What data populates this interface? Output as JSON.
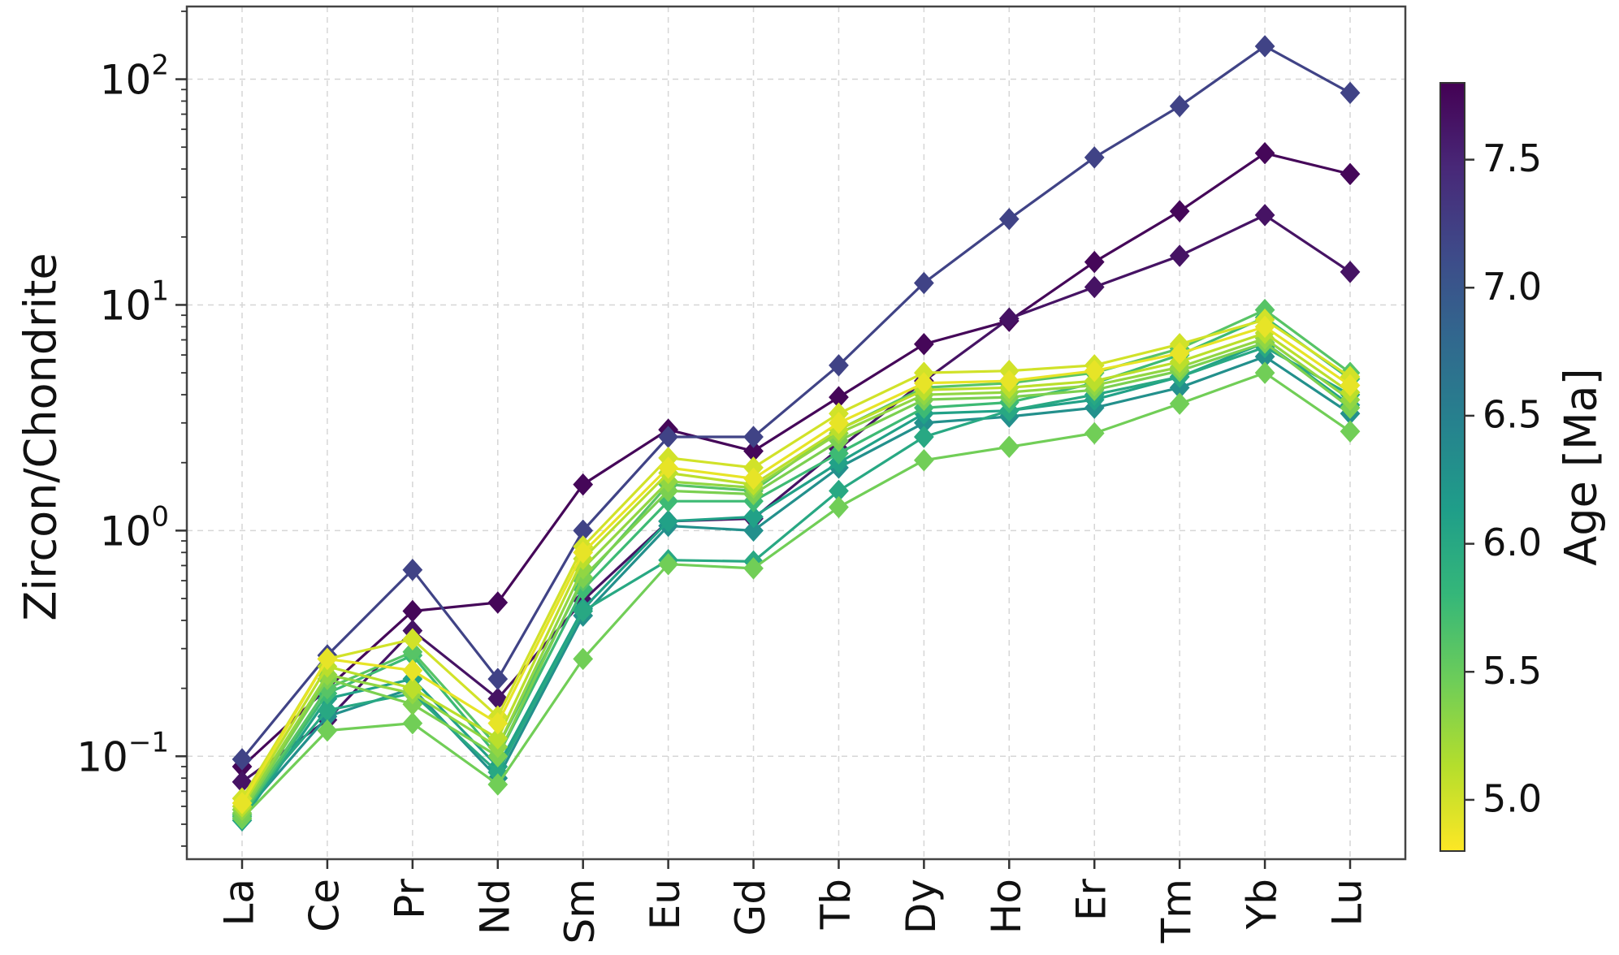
{
  "chart_data": {
    "type": "line",
    "yscale": "log",
    "ylim": [
      0.035,
      210
    ],
    "ylabel": "Zircon/Chondrite",
    "xlabel": "",
    "title": "",
    "grid": true,
    "categories": [
      "La",
      "Ce",
      "Pr",
      "Nd",
      "Sm",
      "Eu",
      "Gd",
      "Tb",
      "Dy",
      "Ho",
      "Er",
      "Tm",
      "Yb",
      "Lu"
    ],
    "ytick_labels": [
      {
        "value": 0.1,
        "base": "10",
        "exp": "−1"
      },
      {
        "value": 1,
        "base": "10",
        "exp": "0"
      },
      {
        "value": 10,
        "base": "10",
        "exp": "1"
      },
      {
        "value": 100,
        "base": "10",
        "exp": "2"
      }
    ],
    "colorbar": {
      "label": "Age [Ma]",
      "range": [
        4.8,
        7.8
      ],
      "ticks": [
        "5.0",
        "5.5",
        "6.0",
        "6.5",
        "7.0",
        "7.5"
      ],
      "colormap": "viridis_r"
    },
    "marker": "diamond",
    "series": [
      {
        "age": 7.2,
        "values": [
          0.097,
          0.28,
          0.67,
          0.22,
          1.0,
          2.6,
          2.6,
          5.4,
          12.5,
          24,
          45,
          76,
          140,
          87
        ]
      },
      {
        "age": 7.75,
        "values": [
          0.09,
          0.2,
          0.44,
          0.48,
          1.6,
          2.8,
          2.25,
          3.9,
          6.7,
          8.5,
          15.5,
          26,
          47,
          38
        ]
      },
      {
        "age": 7.65,
        "values": [
          0.077,
          0.145,
          0.36,
          0.18,
          0.49,
          1.1,
          1.13,
          2.3,
          4.6,
          8.7,
          12,
          16.5,
          25,
          14
        ]
      },
      {
        "age": 5.0,
        "values": [
          0.065,
          0.27,
          0.33,
          0.15,
          0.85,
          2.1,
          1.9,
          3.3,
          5.0,
          5.1,
          5.4,
          6.7,
          8.6,
          4.8
        ]
      },
      {
        "age": 4.9,
        "values": [
          0.062,
          0.27,
          0.24,
          0.14,
          0.8,
          1.9,
          1.7,
          3.0,
          4.5,
          4.6,
          5.1,
          6.1,
          8.0,
          4.4
        ]
      },
      {
        "age": 5.1,
        "values": [
          0.06,
          0.25,
          0.2,
          0.12,
          0.75,
          1.8,
          1.6,
          2.8,
          4.2,
          4.3,
          4.6,
          5.6,
          7.5,
          4.1
        ]
      },
      {
        "age": 5.3,
        "values": [
          0.058,
          0.23,
          0.19,
          0.11,
          0.68,
          1.65,
          1.55,
          2.7,
          4.0,
          4.1,
          4.4,
          5.3,
          7.1,
          3.8
        ]
      },
      {
        "age": 5.4,
        "values": [
          0.056,
          0.22,
          0.17,
          0.1,
          0.62,
          1.5,
          1.45,
          2.5,
          3.8,
          3.9,
          4.2,
          5.1,
          6.8,
          3.5
        ]
      },
      {
        "age": 5.6,
        "values": [
          0.055,
          0.2,
          0.29,
          0.11,
          0.6,
          1.6,
          1.5,
          2.8,
          4.3,
          4.5,
          5.0,
          6.4,
          9.5,
          5.0
        ]
      },
      {
        "age": 5.75,
        "values": [
          0.054,
          0.19,
          0.28,
          0.1,
          0.55,
          1.35,
          1.35,
          2.2,
          3.5,
          3.7,
          4.5,
          6.0,
          8.8,
          4.7
        ]
      },
      {
        "age": 6.1,
        "values": [
          0.052,
          0.18,
          0.22,
          0.09,
          0.45,
          1.1,
          1.15,
          2.0,
          3.3,
          3.4,
          3.8,
          4.8,
          6.8,
          3.6
        ]
      },
      {
        "age": 6.3,
        "values": [
          0.055,
          0.15,
          0.2,
          0.08,
          0.42,
          1.05,
          1.0,
          1.9,
          3.0,
          3.2,
          3.5,
          4.3,
          5.9,
          3.3
        ]
      },
      {
        "age": 6.0,
        "values": [
          0.058,
          0.16,
          0.19,
          0.085,
          0.44,
          0.74,
          0.73,
          1.5,
          2.6,
          3.4,
          4.0,
          4.8,
          6.5,
          4.0
        ]
      },
      {
        "age": 5.45,
        "values": [
          0.053,
          0.13,
          0.14,
          0.075,
          0.27,
          0.71,
          0.68,
          1.27,
          2.05,
          2.35,
          2.7,
          3.65,
          5.0,
          2.75
        ]
      }
    ]
  }
}
